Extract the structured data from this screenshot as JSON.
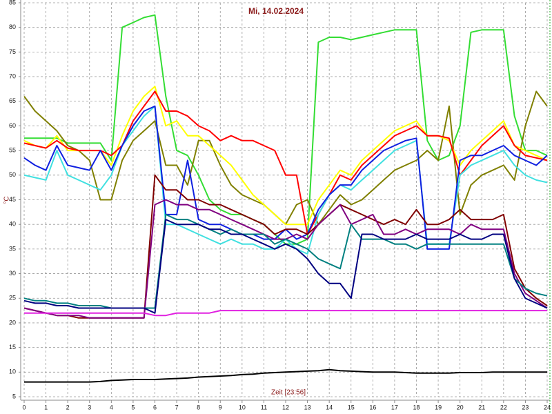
{
  "chart_data": {
    "type": "line",
    "title": "Mi, 14.02.2024",
    "ylabel": "°C",
    "xlabel": "Zeit [23:56]",
    "x": [
      0,
      0.5,
      1,
      1.5,
      2,
      2.5,
      3,
      3.5,
      4,
      4.5,
      5,
      5.5,
      6,
      6.5,
      7,
      7.5,
      8,
      8.5,
      9,
      9.5,
      10,
      10.5,
      11,
      11.5,
      12,
      12.5,
      13,
      13.5,
      14,
      14.5,
      15,
      15.5,
      16,
      16.5,
      17,
      17.5,
      18,
      18.5,
      19,
      19.5,
      20,
      20.5,
      21,
      21.5,
      22,
      22.5,
      23,
      23.5,
      24
    ],
    "xlim": [
      0,
      24
    ],
    "xticks": [
      0,
      1,
      2,
      3,
      4,
      5,
      6,
      7,
      8,
      9,
      10,
      11,
      12,
      13,
      14,
      15,
      16,
      17,
      18,
      19,
      20,
      21,
      22,
      23,
      24
    ],
    "ylim": [
      5,
      85
    ],
    "yticks": [
      5,
      10,
      15,
      20,
      25,
      30,
      35,
      40,
      45,
      50,
      55,
      60,
      65,
      70,
      75,
      80,
      85
    ],
    "grid": true,
    "series": [
      {
        "color": "#33dd33",
        "values": [
          57.5,
          57.5,
          57.5,
          57.5,
          56.5,
          56.5,
          56.5,
          56.5,
          53,
          80,
          81,
          82,
          82.5,
          66,
          55,
          54,
          50,
          45,
          43,
          42,
          42,
          41,
          40,
          38,
          36,
          36,
          37,
          77,
          78,
          78,
          77.5,
          78,
          78.5,
          79,
          79.5,
          79.5,
          79.5,
          57,
          53,
          54,
          60,
          79,
          79.5,
          79.5,
          79.5,
          62,
          55,
          55,
          54
        ]
      },
      {
        "color": "#808000",
        "values": [
          66,
          63,
          61,
          59,
          56,
          55,
          53,
          45,
          45,
          53,
          57,
          59,
          61,
          52,
          52,
          48,
          57,
          57,
          52,
          48,
          46,
          45,
          44,
          42,
          40,
          44,
          45,
          40,
          43,
          46,
          44,
          45,
          47,
          49,
          51,
          52,
          53,
          55,
          53,
          64,
          42,
          48,
          50,
          51,
          52,
          49,
          60,
          67,
          64
        ]
      },
      {
        "color": "#ffff00",
        "values": [
          57,
          56,
          55.5,
          58,
          55,
          55,
          55,
          55,
          52,
          58,
          63,
          66,
          68,
          60,
          61,
          58,
          58,
          56,
          54,
          52,
          49,
          46,
          44,
          42,
          40,
          40,
          40,
          45,
          48,
          51,
          50,
          53,
          55,
          57,
          59,
          60,
          61,
          58,
          58,
          57,
          52,
          55,
          57,
          59,
          61,
          56,
          55,
          54,
          53
        ]
      },
      {
        "color": "#ff0000",
        "values": [
          56.5,
          56,
          55.5,
          57,
          55.5,
          55,
          55,
          55,
          54,
          56,
          61,
          64,
          67,
          63,
          63,
          62,
          60,
          59,
          57,
          58,
          57,
          57,
          56,
          55,
          50,
          50,
          38,
          42,
          46,
          50,
          49,
          52,
          54,
          56,
          58,
          59,
          60,
          58,
          58,
          57.5,
          50,
          53,
          56,
          58,
          60,
          56,
          54,
          53.5,
          53
        ]
      },
      {
        "color": "#40e0e0",
        "values": [
          50,
          49.5,
          49,
          55,
          50,
          49,
          48,
          47,
          50,
          56,
          59,
          62,
          64,
          40,
          40,
          39,
          38,
          37,
          36,
          37,
          36,
          36,
          35,
          35,
          37,
          35,
          34,
          42,
          46,
          48,
          47,
          49,
          51,
          53,
          55,
          56,
          57,
          36,
          36,
          36,
          50,
          52,
          53,
          54,
          55,
          52,
          50,
          49,
          48.5
        ]
      },
      {
        "color": "#1020e0",
        "values": [
          53.5,
          52,
          51,
          56,
          52,
          51.5,
          51,
          55,
          51,
          56,
          60,
          63,
          64,
          42,
          42,
          53,
          41,
          40,
          40,
          39,
          38,
          38,
          37,
          37,
          39,
          37,
          38,
          43,
          46,
          48,
          48,
          51,
          53,
          55,
          56,
          57,
          57.5,
          35,
          35,
          35,
          53,
          54,
          54,
          55,
          56,
          54,
          53,
          52,
          54
        ]
      },
      {
        "color": "#800000",
        "values": [
          23,
          22.5,
          22,
          21.5,
          21.5,
          21,
          21,
          21,
          21,
          21,
          21,
          21,
          50,
          47,
          47,
          45,
          45,
          44,
          44,
          43,
          42,
          41,
          40,
          38,
          39,
          39,
          38,
          40,
          42,
          44,
          43,
          42,
          41,
          40,
          41,
          40,
          43,
          40,
          40,
          41,
          43,
          41,
          41,
          41,
          42,
          31,
          27,
          25,
          23.5
        ]
      },
      {
        "color": "#800080",
        "values": [
          23,
          22.5,
          22,
          21.5,
          21.5,
          21.5,
          21,
          21,
          21,
          21,
          21,
          21,
          44,
          45,
          44,
          44,
          43,
          43,
          42,
          41,
          40,
          39,
          38,
          37,
          37,
          38,
          37,
          40,
          42,
          44,
          40,
          41,
          42,
          38,
          38,
          39,
          38,
          39,
          39,
          39,
          38,
          40,
          39,
          39,
          39,
          30,
          26,
          24.5,
          23
        ]
      },
      {
        "color": "#008080",
        "values": [
          25,
          24.5,
          24.5,
          24,
          24,
          23.5,
          23.5,
          23.5,
          23,
          23,
          23,
          23,
          23,
          42,
          41,
          41,
          40,
          39,
          38,
          39,
          38,
          38,
          38,
          36,
          37,
          36,
          35,
          33,
          32,
          31,
          40,
          37,
          37,
          37,
          36,
          36,
          35,
          36,
          36,
          36,
          36,
          36,
          36,
          36,
          36,
          29,
          27,
          26,
          25.5
        ]
      },
      {
        "color": "#000080",
        "values": [
          24.5,
          24,
          24,
          23.5,
          23.5,
          23,
          23,
          23,
          23,
          23,
          23,
          23,
          22,
          41,
          40,
          40,
          40,
          39,
          39,
          38,
          38,
          37,
          36,
          35,
          36,
          35,
          33,
          30,
          28,
          28,
          25,
          38,
          38,
          37,
          37,
          37,
          38,
          37,
          37,
          37,
          38,
          37,
          37,
          38,
          38,
          29,
          25,
          24,
          23
        ]
      },
      {
        "color": "#e020e0",
        "values": [
          22,
          22,
          22,
          22,
          22,
          22,
          22,
          22,
          22,
          22,
          22,
          22,
          21.5,
          21.5,
          22,
          22,
          22,
          22,
          22.5,
          22.5,
          22.5,
          22.5,
          22.5,
          22.5,
          22.5,
          22.5,
          22.5,
          22.5,
          22.5,
          22.5,
          22.5,
          22.5,
          22.5,
          22.5,
          22.5,
          22.5,
          22.5,
          22.5,
          22.5,
          22.5,
          22.5,
          22.5,
          22.5,
          22.5,
          22.5,
          22.5,
          22.5,
          22.5,
          22.5
        ]
      },
      {
        "color": "#000000",
        "values": [
          8,
          8,
          8,
          8,
          8,
          8,
          8,
          8.1,
          8.3,
          8.4,
          8.5,
          8.5,
          8.5,
          8.6,
          8.7,
          8.8,
          9,
          9.1,
          9.2,
          9.3,
          9.5,
          9.6,
          9.8,
          9.9,
          10,
          10.1,
          10.2,
          10.3,
          10.5,
          10.3,
          10.2,
          10.1,
          10,
          10,
          10,
          9.9,
          9.8,
          9.8,
          9.8,
          9.8,
          9.9,
          9.9,
          9.9,
          10,
          10,
          10,
          10,
          10,
          10
        ]
      }
    ]
  }
}
